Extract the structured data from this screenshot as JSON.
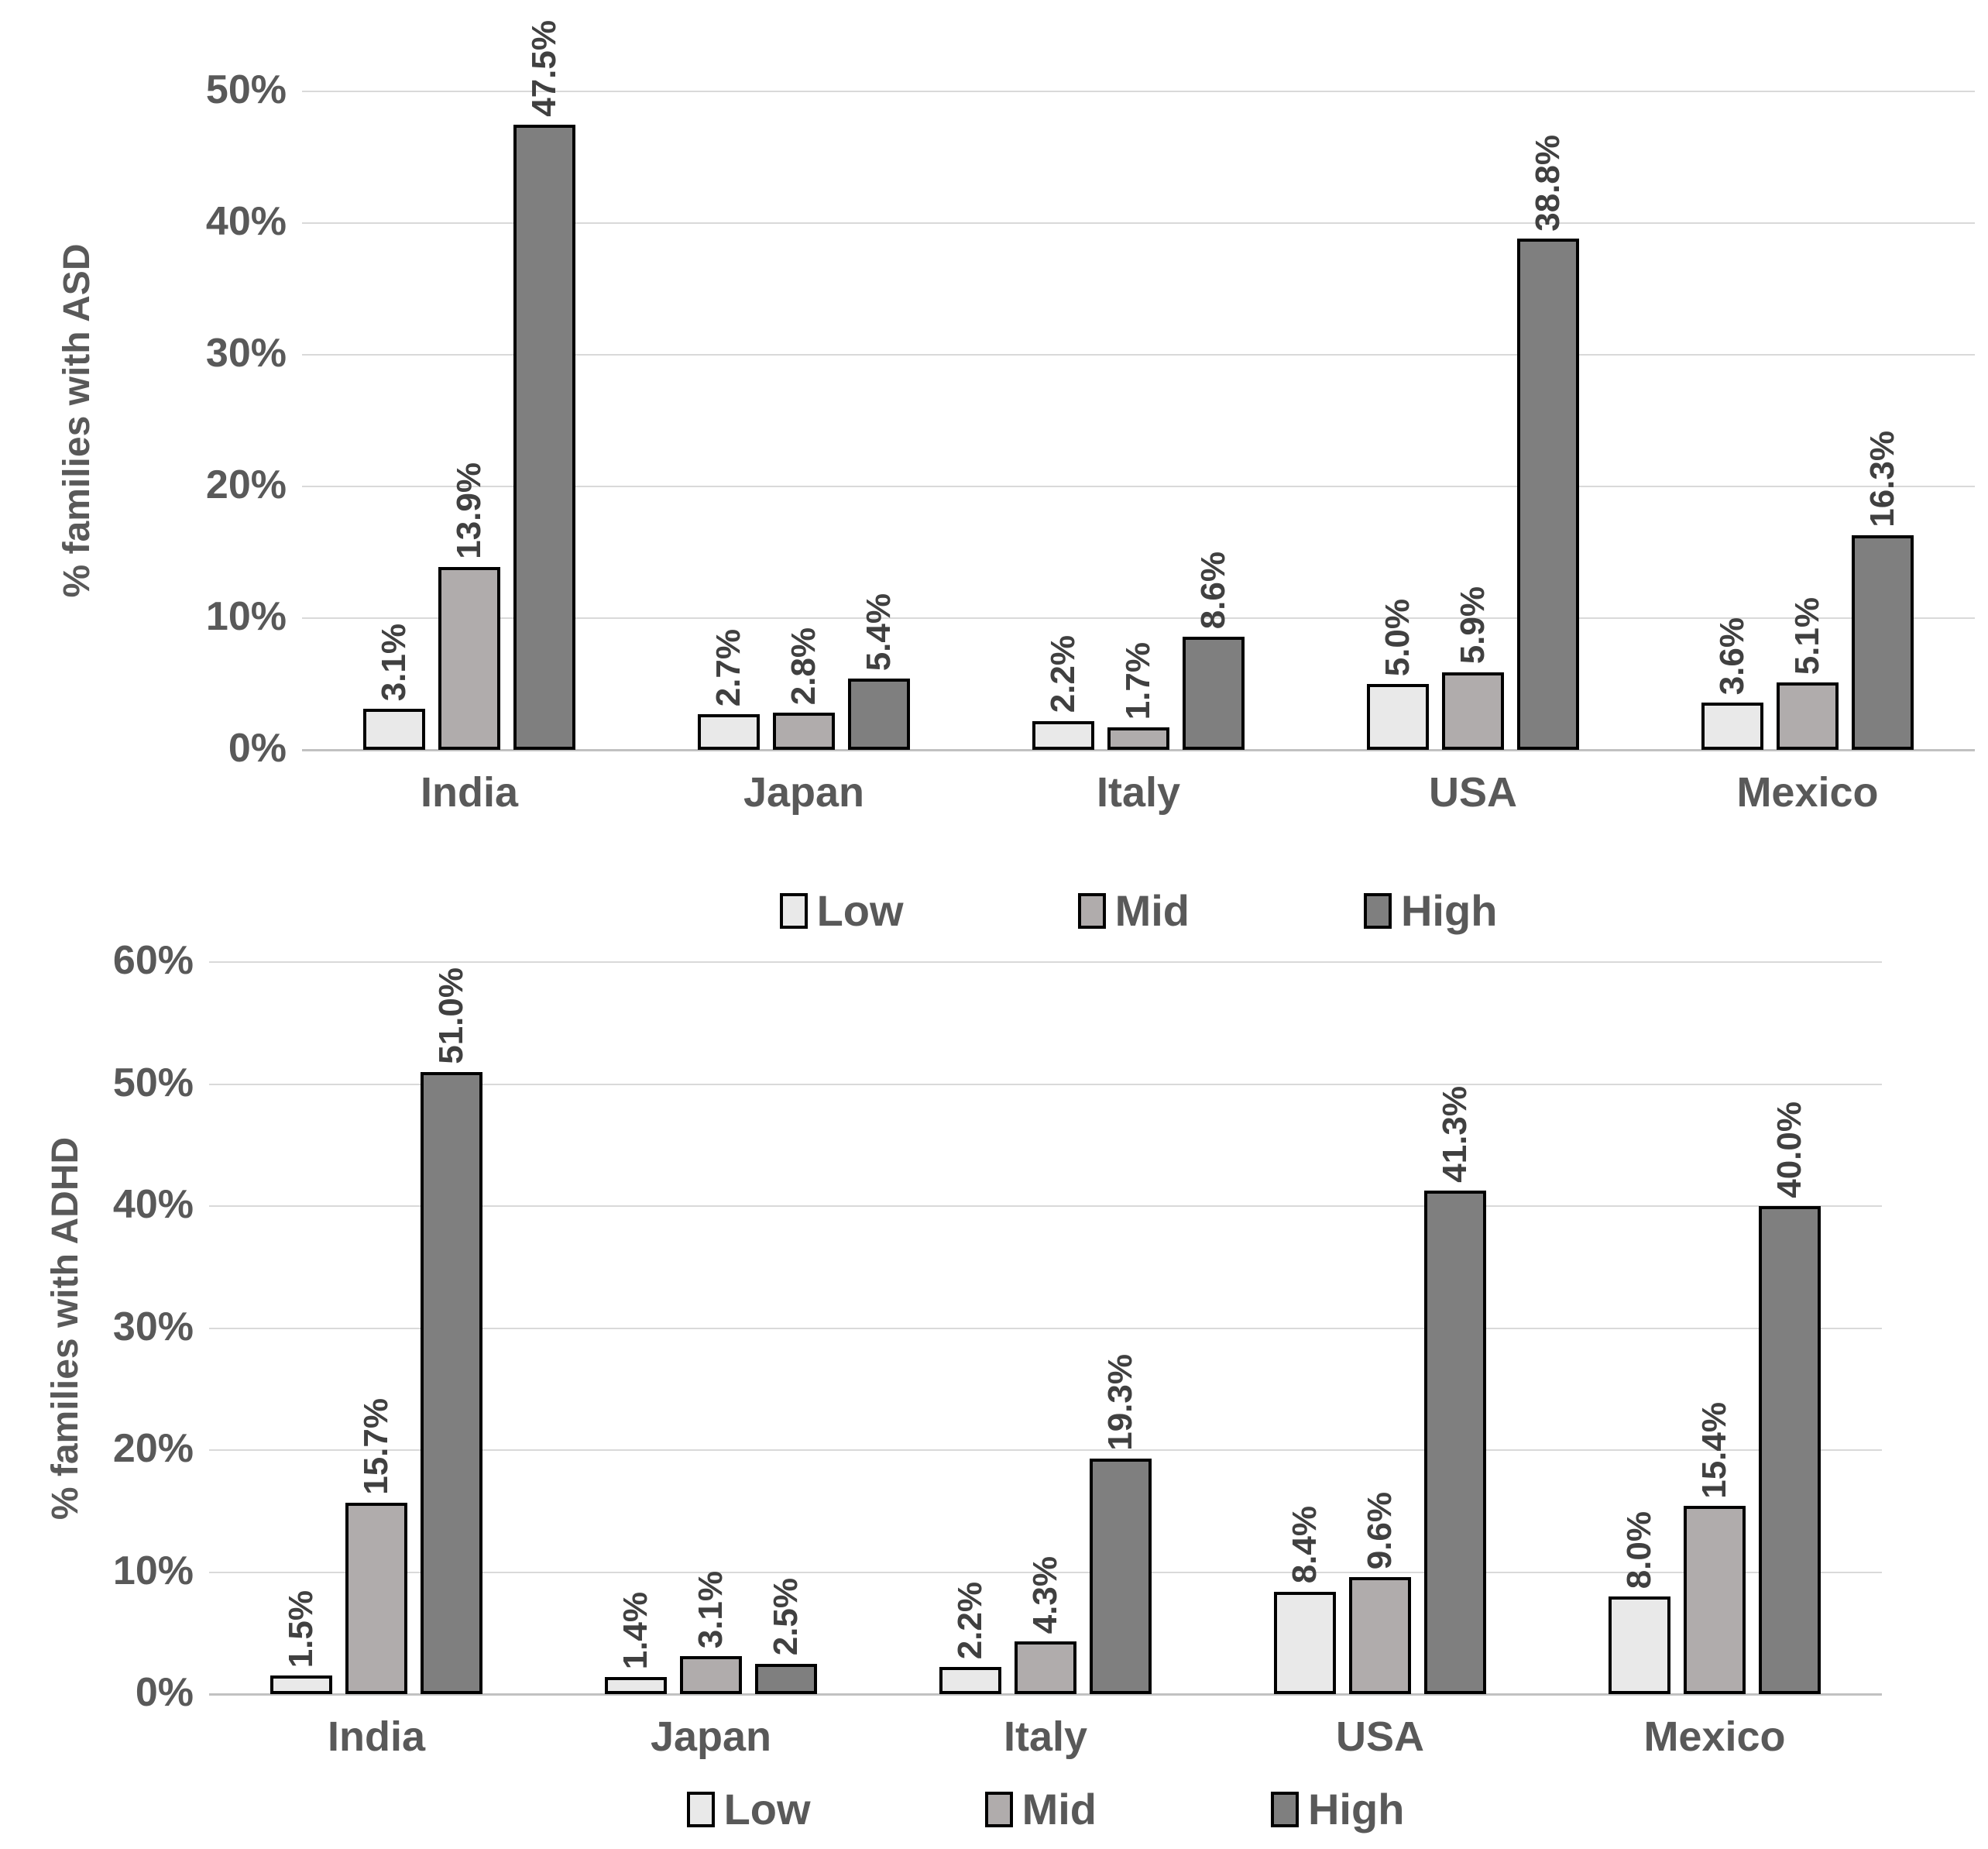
{
  "colors": {
    "low_fill": "#e9e9e9",
    "mid_fill": "#b0acac",
    "high_fill": "#7f7f7f",
    "bar_border": "#000000",
    "axis_text": "#595959",
    "data_label_text": "#404040",
    "gridline": "#d9d9d9"
  },
  "chart_data": [
    {
      "id": "asd",
      "type": "bar",
      "title": "",
      "ylabel": "% families with ASD",
      "xlabel": "",
      "ymax": 50,
      "ylim": [
        0,
        50
      ],
      "grid": true,
      "legend_position": "bottom",
      "ytick_labels": [
        "50%",
        "40%",
        "30%",
        "20%",
        "10%",
        "0%"
      ],
      "categories": [
        "India",
        "Japan",
        "Italy",
        "USA",
        "Mexico"
      ],
      "series": [
        {
          "name": "Low",
          "color": "#e9e9e9",
          "values": [
            3.1,
            2.7,
            2.2,
            5.0,
            3.6
          ],
          "data_labels": [
            "3.1%",
            "2.7%",
            "2.2%",
            "5.0%",
            "3.6%"
          ]
        },
        {
          "name": "Mid",
          "color": "#b0acac",
          "values": [
            13.9,
            2.8,
            1.7,
            5.9,
            5.1
          ],
          "data_labels": [
            "13.9%",
            "2.8%",
            "1.7%",
            "5.9%",
            "5.1%"
          ]
        },
        {
          "name": "High",
          "color": "#7f7f7f",
          "values": [
            47.5,
            5.4,
            8.6,
            38.8,
            16.3
          ],
          "data_labels": [
            "47.5%",
            "5.4%",
            "8.6%",
            "38.8%",
            "16.3%"
          ]
        }
      ],
      "legend": [
        "Low",
        "Mid",
        "High"
      ]
    },
    {
      "id": "adhd",
      "type": "bar",
      "title": "",
      "ylabel": "% families with ADHD",
      "xlabel": "",
      "ymax": 60,
      "ylim": [
        0,
        60
      ],
      "grid": true,
      "legend_position": "bottom",
      "ytick_labels": [
        "60%",
        "50%",
        "40%",
        "30%",
        "20%",
        "10%",
        "0%"
      ],
      "categories": [
        "India",
        "Japan",
        "Italy",
        "USA",
        "Mexico"
      ],
      "series": [
        {
          "name": "Low",
          "color": "#e9e9e9",
          "values": [
            1.5,
            1.4,
            2.2,
            8.4,
            8.0
          ],
          "data_labels": [
            "1.5%",
            "1.4%",
            "2.2%",
            "8.4%",
            "8.0%"
          ]
        },
        {
          "name": "Mid",
          "color": "#b0acac",
          "values": [
            15.7,
            3.1,
            4.3,
            9.6,
            15.4
          ],
          "data_labels": [
            "15.7%",
            "3.1%",
            "4.3%",
            "9.6%",
            "15.4%"
          ]
        },
        {
          "name": "High",
          "color": "#7f7f7f",
          "values": [
            51.0,
            2.5,
            19.3,
            41.3,
            40.0
          ],
          "data_labels": [
            "51.0%",
            "2.5%",
            "19.3%",
            "41.3%",
            "40.0%"
          ]
        }
      ],
      "legend": [
        "Low",
        "Mid",
        "High"
      ]
    }
  ]
}
